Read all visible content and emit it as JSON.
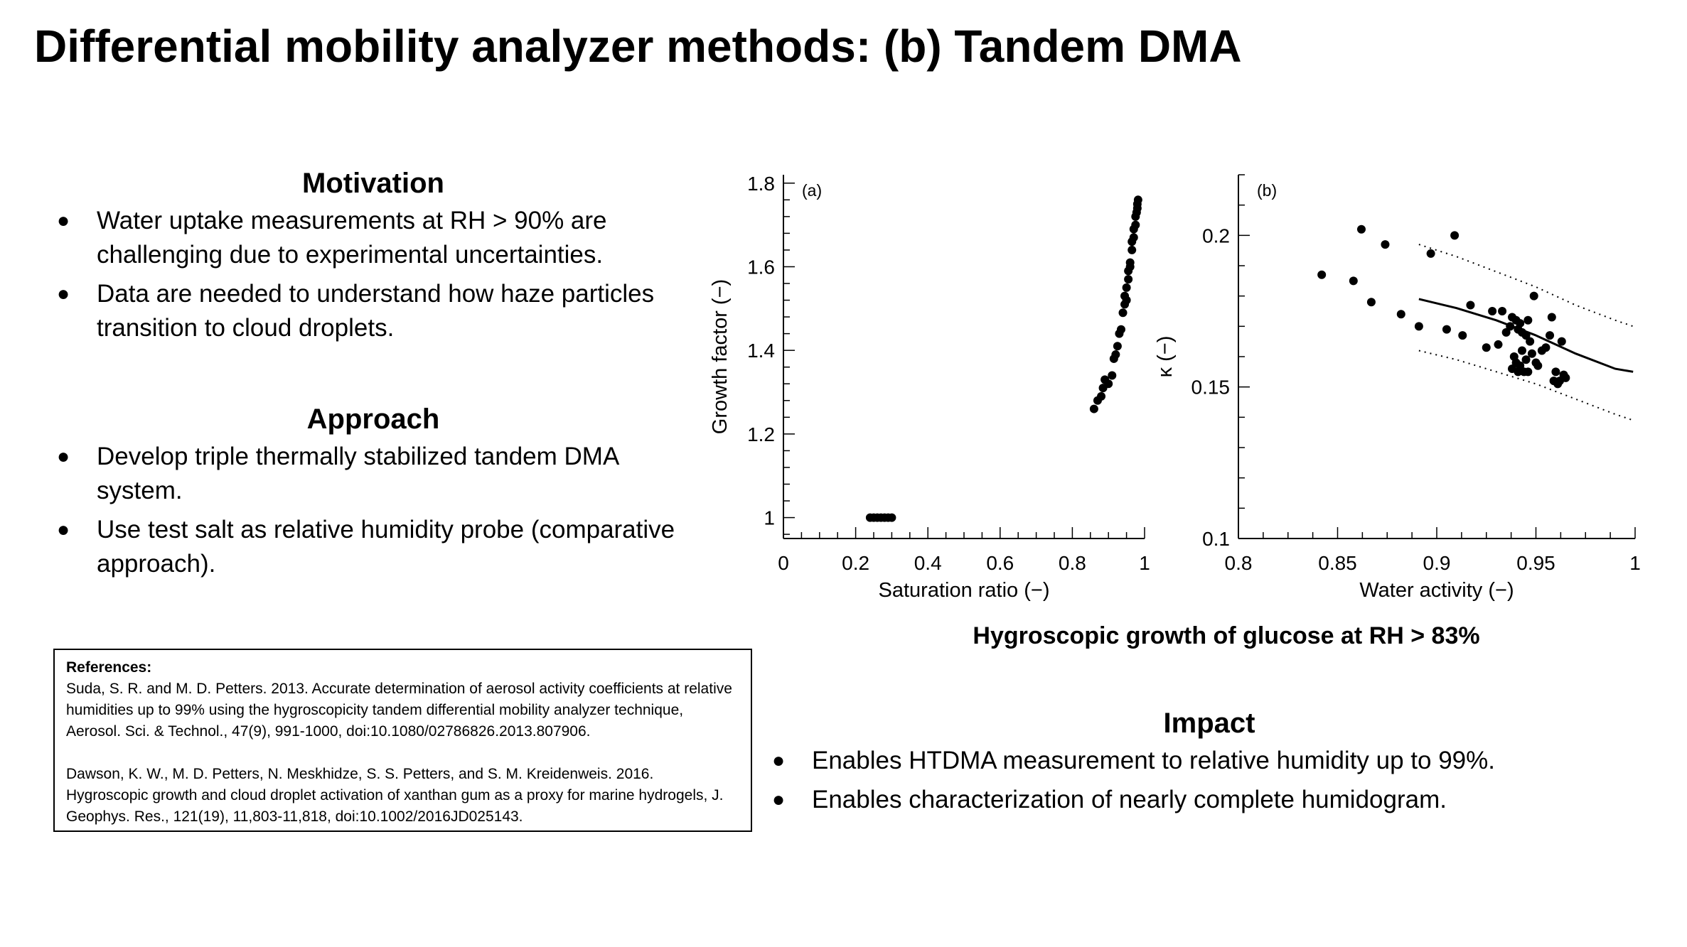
{
  "title": "Differential mobility analyzer methods: (b) Tandem DMA",
  "motivation": {
    "heading": "Motivation",
    "bullets": [
      "Water uptake measurements at RH > 90% are challenging due to experimental uncertainties.",
      "Data are needed to understand how haze particles transition to cloud droplets."
    ]
  },
  "approach": {
    "heading": "Approach",
    "bullets": [
      "Develop triple thermally stabilized tandem DMA system.",
      "Use test salt as relative humidity probe (comparative approach)."
    ]
  },
  "impact": {
    "heading": "Impact",
    "bullets": [
      "Enables HTDMA measurement to relative humidity up to 99%.",
      "Enables characterization of nearly complete humidogram."
    ]
  },
  "references": {
    "heading": "References:",
    "items": [
      "Suda, S. R. and M. D. Petters. 2013. Accurate determination of aerosol activity coefficients at relative humidities up to 99% using the hygroscopicity tandem differential mobility analyzer technique, Aerosol. Sci. & Technol., 47(9), 991-1000, doi:10.1080/02786826.2013.807906.",
      "Dawson, K. W., M. D. Petters, N. Meskhidze, S. S. Petters, and S. M. Kreidenweis. 2016. Hygroscopic growth and cloud droplet activation of xanthan gum as a proxy for marine hydrogels, J. Geophys. Res., 121(19), 11,803-11,818, doi:10.1002/2016JD025143."
    ]
  },
  "figure_caption": "Hygroscopic growth of glucose at RH > 83%",
  "bullet_glyph": "●",
  "chart_data": [
    {
      "type": "scatter",
      "panel_label": "(a)",
      "xlabel": "Saturation ratio (−)",
      "ylabel": "Growth factor (−)",
      "xlim": [
        0,
        1
      ],
      "ylim": [
        0.95,
        1.82
      ],
      "xticks": [
        0,
        0.2,
        0.4,
        0.6,
        0.8,
        1
      ],
      "xtick_labels": [
        "0",
        "0.2",
        "0.4",
        "0.6",
        "0.8",
        "1"
      ],
      "yticks": [
        1,
        1.2,
        1.4,
        1.6,
        1.8
      ],
      "ytick_labels": [
        "1",
        "1.2",
        "1.4",
        "1.6",
        "1.8"
      ],
      "series": [
        {
          "x": [
            0.24,
            0.25,
            0.26,
            0.27,
            0.28,
            0.29,
            0.3,
            0.86,
            0.87,
            0.88,
            0.885,
            0.89,
            0.9,
            0.91,
            0.915,
            0.92,
            0.925,
            0.93,
            0.935,
            0.94,
            0.945,
            0.945,
            0.95,
            0.95,
            0.955,
            0.955,
            0.96,
            0.96,
            0.965,
            0.965,
            0.97,
            0.97,
            0.975,
            0.975,
            0.978,
            0.98,
            0.98,
            0.982
          ],
          "y": [
            1,
            1,
            1,
            1,
            1,
            1,
            1,
            1.26,
            1.28,
            1.29,
            1.31,
            1.33,
            1.32,
            1.34,
            1.38,
            1.39,
            1.41,
            1.44,
            1.45,
            1.49,
            1.51,
            1.53,
            1.52,
            1.55,
            1.57,
            1.59,
            1.6,
            1.61,
            1.64,
            1.66,
            1.67,
            1.69,
            1.7,
            1.72,
            1.73,
            1.74,
            1.75,
            1.76
          ]
        }
      ]
    },
    {
      "type": "scatter",
      "panel_label": "(b)",
      "xlabel": "Water activity (−)",
      "ylabel": "κ (−)",
      "xlim": [
        0.8,
        1
      ],
      "ylim": [
        0.1,
        0.22
      ],
      "xticks": [
        0.8,
        0.85,
        0.9,
        0.95,
        1
      ],
      "xtick_labels": [
        "0.8",
        "0.85",
        "0.9",
        "0.95",
        "1"
      ],
      "yticks": [
        0.1,
        0.15,
        0.2
      ],
      "ytick_labels": [
        "0.1",
        "0.15",
        "0.2"
      ],
      "series": [
        {
          "x": [
            0.842,
            0.858,
            0.862,
            0.867,
            0.874,
            0.882,
            0.891,
            0.897,
            0.905,
            0.909,
            0.913,
            0.917,
            0.925,
            0.928,
            0.931,
            0.933,
            0.935,
            0.937,
            0.938,
            0.938,
            0.939,
            0.94,
            0.94,
            0.941,
            0.941,
            0.942,
            0.942,
            0.943,
            0.943,
            0.944,
            0.945,
            0.945,
            0.946,
            0.946,
            0.947,
            0.948,
            0.949,
            0.95,
            0.951,
            0.953,
            0.955,
            0.957,
            0.958,
            0.959,
            0.96,
            0.961,
            0.962,
            0.963,
            0.964,
            0.965
          ],
          "y": [
            0.187,
            0.185,
            0.202,
            0.178,
            0.197,
            0.174,
            0.17,
            0.194,
            0.169,
            0.2,
            0.167,
            0.177,
            0.163,
            0.175,
            0.164,
            0.175,
            0.168,
            0.17,
            0.173,
            0.156,
            0.16,
            0.158,
            0.172,
            0.155,
            0.169,
            0.171,
            0.157,
            0.162,
            0.168,
            0.155,
            0.167,
            0.159,
            0.172,
            0.155,
            0.165,
            0.161,
            0.18,
            0.158,
            0.157,
            0.162,
            0.163,
            0.167,
            0.173,
            0.152,
            0.155,
            0.151,
            0.152,
            0.165,
            0.154,
            0.153
          ]
        },
        {
          "style": "solid-line",
          "x": [
            0.891,
            0.91,
            0.93,
            0.95,
            0.97,
            0.99,
            0.999
          ],
          "y": [
            0.179,
            0.176,
            0.172,
            0.167,
            0.161,
            0.156,
            0.155
          ]
        },
        {
          "style": "dotted-line",
          "x": [
            0.891,
            0.91,
            0.93,
            0.95,
            0.97,
            0.99,
            0.999
          ],
          "y": [
            0.197,
            0.193,
            0.188,
            0.183,
            0.177,
            0.172,
            0.17
          ]
        },
        {
          "style": "dotted-line",
          "x": [
            0.891,
            0.91,
            0.93,
            0.95,
            0.97,
            0.99,
            0.999
          ],
          "y": [
            0.162,
            0.159,
            0.155,
            0.151,
            0.146,
            0.141,
            0.139
          ]
        }
      ]
    }
  ]
}
